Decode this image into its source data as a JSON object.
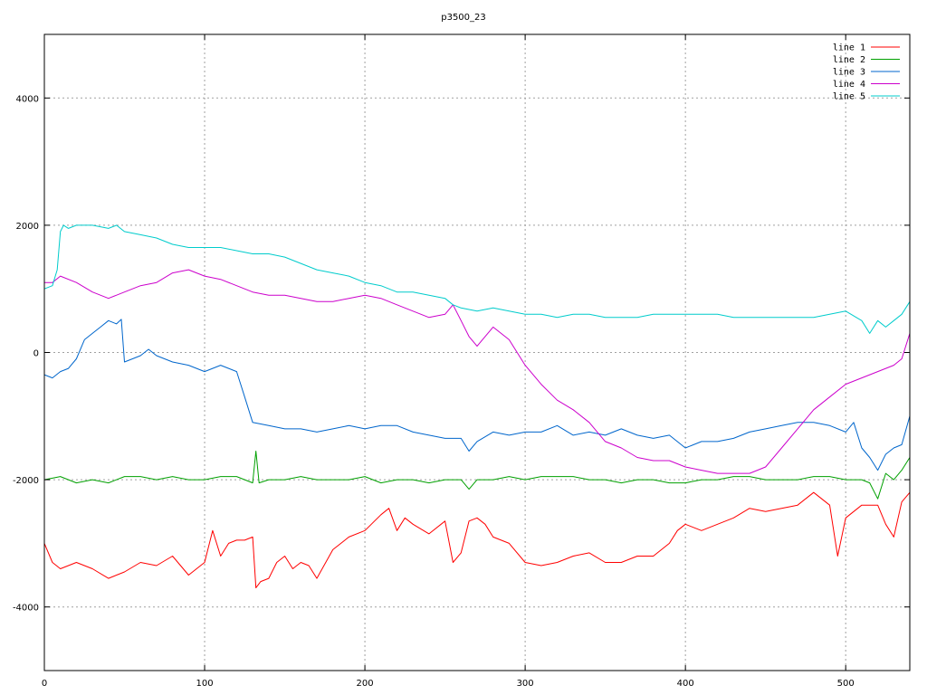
{
  "chart_data": {
    "type": "line",
    "title": "p3500_23",
    "xlabel": "",
    "ylabel": "",
    "xlim": [
      0,
      540
    ],
    "ylim": [
      -5000,
      5000
    ],
    "xticks": [
      0,
      100,
      200,
      300,
      400,
      500
    ],
    "yticks": [
      -4000,
      -2000,
      0,
      2000,
      4000
    ],
    "grid": true,
    "legend_position": "top-right",
    "series": [
      {
        "name": "line 1",
        "color": "#ff0000",
        "x": [
          0,
          5,
          10,
          20,
          30,
          40,
          50,
          60,
          70,
          80,
          90,
          100,
          105,
          110,
          115,
          120,
          125,
          130,
          132,
          135,
          140,
          145,
          150,
          155,
          160,
          165,
          170,
          180,
          190,
          200,
          210,
          215,
          220,
          225,
          230,
          240,
          250,
          255,
          260,
          265,
          270,
          275,
          280,
          290,
          300,
          310,
          320,
          330,
          340,
          350,
          360,
          370,
          380,
          390,
          395,
          400,
          410,
          420,
          430,
          440,
          450,
          460,
          470,
          475,
          480,
          490,
          495,
          500,
          510,
          520,
          525,
          530,
          535,
          540
        ],
        "y": [
          -3000,
          -3300,
          -3400,
          -3300,
          -3400,
          -3550,
          -3450,
          -3300,
          -3350,
          -3200,
          -3500,
          -3300,
          -2800,
          -3200,
          -3000,
          -2950,
          -2950,
          -2900,
          -3700,
          -3600,
          -3550,
          -3300,
          -3200,
          -3400,
          -3300,
          -3350,
          -3550,
          -3100,
          -2900,
          -2800,
          -2550,
          -2450,
          -2800,
          -2600,
          -2700,
          -2850,
          -2650,
          -3300,
          -3150,
          -2650,
          -2600,
          -2700,
          -2900,
          -3000,
          -3300,
          -3350,
          -3300,
          -3200,
          -3150,
          -3300,
          -3300,
          -3200,
          -3200,
          -3000,
          -2800,
          -2700,
          -2800,
          -2700,
          -2600,
          -2450,
          -2500,
          -2450,
          -2400,
          -2300,
          -2200,
          -2400,
          -3200,
          -2600,
          -2400,
          -2400,
          -2700,
          -2900,
          -2350,
          -2200
        ]
      },
      {
        "name": "line 2",
        "color": "#00a000",
        "x": [
          0,
          10,
          20,
          30,
          40,
          50,
          60,
          70,
          80,
          90,
          100,
          110,
          120,
          125,
          130,
          132,
          134,
          140,
          150,
          160,
          170,
          180,
          190,
          200,
          210,
          220,
          230,
          240,
          250,
          260,
          265,
          270,
          280,
          290,
          300,
          310,
          320,
          330,
          340,
          350,
          360,
          370,
          380,
          390,
          400,
          410,
          420,
          430,
          440,
          450,
          460,
          470,
          480,
          490,
          500,
          510,
          515,
          520,
          525,
          530,
          535,
          540
        ],
        "y": [
          -2000,
          -1950,
          -2050,
          -2000,
          -2050,
          -1950,
          -1950,
          -2000,
          -1950,
          -2000,
          -2000,
          -1950,
          -1950,
          -2000,
          -2050,
          -1550,
          -2050,
          -2000,
          -2000,
          -1950,
          -2000,
          -2000,
          -2000,
          -1950,
          -2050,
          -2000,
          -2000,
          -2050,
          -2000,
          -2000,
          -2150,
          -2000,
          -2000,
          -1950,
          -2000,
          -1950,
          -1950,
          -1950,
          -2000,
          -2000,
          -2050,
          -2000,
          -2000,
          -2050,
          -2050,
          -2000,
          -2000,
          -1950,
          -1950,
          -2000,
          -2000,
          -2000,
          -1950,
          -1950,
          -2000,
          -2000,
          -2050,
          -2300,
          -1900,
          -2000,
          -1850,
          -1650
        ]
      },
      {
        "name": "line 3",
        "color": "#0066cc",
        "x": [
          0,
          5,
          10,
          15,
          20,
          25,
          30,
          35,
          40,
          45,
          48,
          50,
          55,
          60,
          65,
          70,
          80,
          90,
          100,
          110,
          115,
          120,
          125,
          130,
          140,
          150,
          160,
          170,
          180,
          190,
          200,
          210,
          220,
          230,
          240,
          250,
          260,
          265,
          270,
          280,
          290,
          300,
          310,
          320,
          330,
          340,
          350,
          360,
          370,
          380,
          390,
          400,
          410,
          420,
          430,
          440,
          450,
          460,
          470,
          480,
          490,
          500,
          505,
          510,
          515,
          520,
          525,
          530,
          535,
          540
        ],
        "y": [
          -350,
          -400,
          -300,
          -250,
          -100,
          200,
          300,
          400,
          500,
          450,
          520,
          -150,
          -100,
          -50,
          50,
          -50,
          -150,
          -200,
          -300,
          -200,
          -250,
          -300,
          -700,
          -1100,
          -1150,
          -1200,
          -1200,
          -1250,
          -1200,
          -1150,
          -1200,
          -1150,
          -1150,
          -1250,
          -1300,
          -1350,
          -1350,
          -1550,
          -1400,
          -1250,
          -1300,
          -1250,
          -1250,
          -1150,
          -1300,
          -1250,
          -1300,
          -1200,
          -1300,
          -1350,
          -1300,
          -1500,
          -1400,
          -1400,
          -1350,
          -1250,
          -1200,
          -1150,
          -1100,
          -1100,
          -1150,
          -1250,
          -1100,
          -1500,
          -1650,
          -1850,
          -1600,
          -1500,
          -1450,
          -1000
        ]
      },
      {
        "name": "line 4",
        "color": "#cc00cc",
        "x": [
          0,
          5,
          10,
          20,
          30,
          40,
          50,
          60,
          70,
          80,
          90,
          100,
          110,
          120,
          130,
          140,
          150,
          160,
          170,
          180,
          190,
          200,
          210,
          220,
          230,
          240,
          250,
          255,
          260,
          265,
          270,
          280,
          290,
          300,
          310,
          320,
          330,
          340,
          350,
          360,
          370,
          380,
          390,
          400,
          410,
          420,
          430,
          440,
          450,
          460,
          470,
          480,
          490,
          500,
          510,
          520,
          530,
          535,
          540
        ],
        "y": [
          1100,
          1100,
          1200,
          1100,
          950,
          850,
          950,
          1050,
          1100,
          1250,
          1300,
          1200,
          1150,
          1050,
          950,
          900,
          900,
          850,
          800,
          800,
          850,
          900,
          850,
          750,
          650,
          550,
          600,
          750,
          500,
          250,
          100,
          400,
          200,
          -200,
          -500,
          -750,
          -900,
          -1100,
          -1400,
          -1500,
          -1650,
          -1700,
          -1700,
          -1800,
          -1850,
          -1900,
          -1900,
          -1900,
          -1800,
          -1500,
          -1200,
          -900,
          -700,
          -500,
          -400,
          -300,
          -200,
          -100,
          300
        ]
      },
      {
        "name": "line 5",
        "color": "#00cccc",
        "x": [
          0,
          5,
          8,
          10,
          12,
          15,
          20,
          30,
          40,
          45,
          50,
          60,
          70,
          80,
          90,
          100,
          110,
          120,
          130,
          140,
          150,
          160,
          170,
          180,
          190,
          200,
          210,
          220,
          230,
          240,
          250,
          255,
          260,
          270,
          280,
          290,
          300,
          310,
          320,
          330,
          340,
          350,
          360,
          370,
          380,
          390,
          400,
          410,
          420,
          430,
          440,
          450,
          460,
          470,
          480,
          490,
          500,
          510,
          515,
          520,
          525,
          530,
          535,
          540
        ],
        "y": [
          1000,
          1050,
          1300,
          1900,
          2000,
          1950,
          2000,
          2000,
          1950,
          2000,
          1900,
          1850,
          1800,
          1700,
          1650,
          1650,
          1650,
          1600,
          1550,
          1550,
          1500,
          1400,
          1300,
          1250,
          1200,
          1100,
          1050,
          950,
          950,
          900,
          850,
          750,
          700,
          650,
          700,
          650,
          600,
          600,
          550,
          600,
          600,
          550,
          550,
          550,
          600,
          600,
          600,
          600,
          600,
          550,
          550,
          550,
          550,
          550,
          550,
          600,
          650,
          500,
          300,
          500,
          400,
          500,
          600,
          800
        ]
      }
    ]
  }
}
